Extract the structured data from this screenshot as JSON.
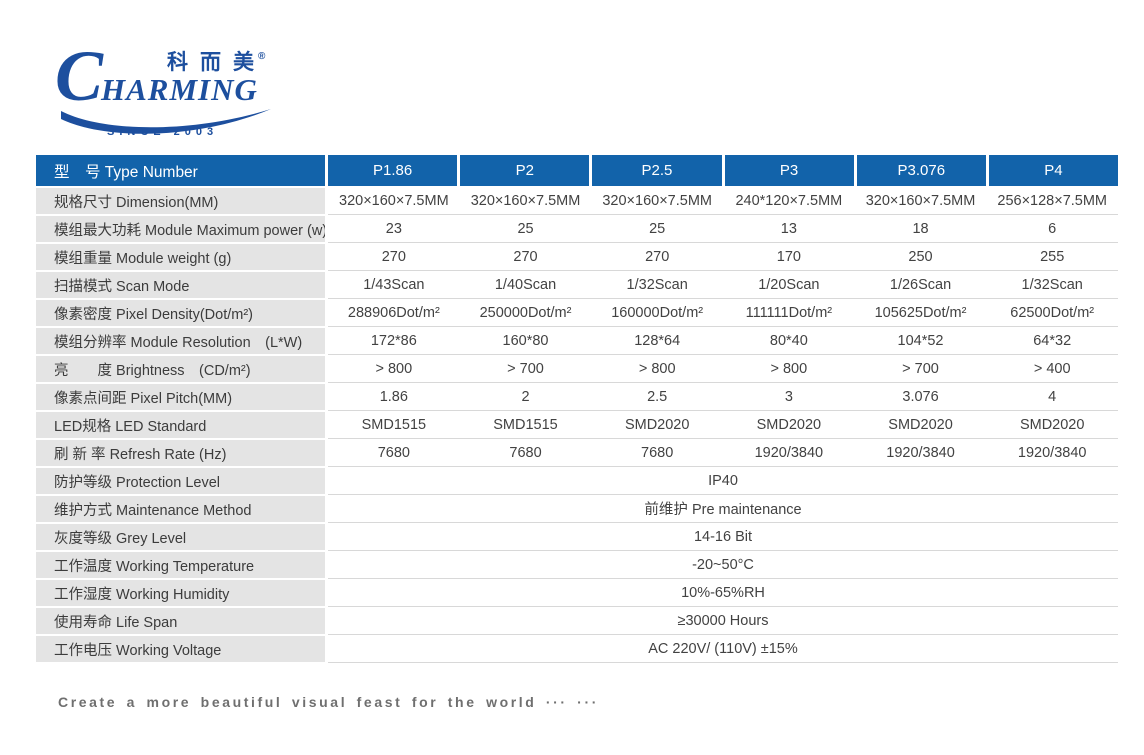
{
  "logo": {
    "chinese_name": "科而美",
    "registered_mark": "®",
    "brand_initial": "C",
    "brand_rest": "HARMING",
    "since_text": "SINCE 2003"
  },
  "colors": {
    "header_blue": "#1263aa",
    "logo_blue": "#1d4f9e",
    "label_cell_bg": "#e4e4e4",
    "row_line": "#d8d8d8",
    "label_text": "#3c3c3c",
    "value_text": "#424242",
    "footer_text": "#6f6f6f"
  },
  "table": {
    "header_label": "型　号 Type Number",
    "columns": [
      "P1.86",
      "P2",
      "P2.5",
      "P3",
      "P3.076",
      "P4"
    ],
    "rows": [
      {
        "label": "规格尺寸 Dimension(MM)",
        "values": [
          "320×160×7.5MM",
          "320×160×7.5MM",
          "320×160×7.5MM",
          "240*120×7.5MM",
          "320×160×7.5MM",
          "256×128×7.5MM"
        ]
      },
      {
        "label": "模组最大功耗 Module Maximum power (w)",
        "values": [
          "23",
          "25",
          "25",
          "13",
          "18",
          "6"
        ]
      },
      {
        "label": "模组重量 Module weight (g)",
        "values": [
          "270",
          "270",
          "270",
          "170",
          "250",
          "255"
        ]
      },
      {
        "label": "扫描模式 Scan Mode",
        "values": [
          "1/43Scan",
          "1/40Scan",
          "1/32Scan",
          "1/20Scan",
          "1/26Scan",
          "1/32Scan"
        ]
      },
      {
        "label": "像素密度 Pixel Density(Dot/m²)",
        "values": [
          "288906Dot/m²",
          "250000Dot/m²",
          "160000Dot/m²",
          "111111Dot/m²",
          "105625Dot/m²",
          "62500Dot/m²"
        ]
      },
      {
        "label": "模组分辨率 Module Resolution　(L*W)",
        "values": [
          "172*86",
          "160*80",
          "128*64",
          "80*40",
          "104*52",
          "64*32"
        ]
      },
      {
        "label": "亮　　度 Brightness　(CD/m²)",
        "values": [
          "> 800",
          "> 700",
          "> 800",
          "> 800",
          "> 700",
          "> 400"
        ]
      },
      {
        "label": "像素点间距 Pixel Pitch(MM)",
        "values": [
          "1.86",
          "2",
          "2.5",
          "3",
          "3.076",
          "4"
        ]
      },
      {
        "label": "LED规格 LED Standard",
        "values": [
          "SMD1515",
          "SMD1515",
          "SMD2020",
          "SMD2020",
          "SMD2020",
          "SMD2020"
        ]
      },
      {
        "label": "刷 新 率 Refresh Rate (Hz)",
        "values": [
          "7680",
          "7680",
          "7680",
          "1920/3840",
          "1920/3840",
          "1920/3840"
        ]
      },
      {
        "label": "防护等级 Protection Level",
        "merged_value": "IP40"
      },
      {
        "label": "维护方式 Maintenance Method",
        "merged_value": "前维护 Pre maintenance"
      },
      {
        "label": "灰度等级 Grey Level",
        "merged_value": "14-16 Bit"
      },
      {
        "label": "工作温度 Working Temperature",
        "merged_value": "-20~50°C"
      },
      {
        "label": "工作湿度 Working Humidity",
        "merged_value": "10%-65%RH"
      },
      {
        "label": "使用寿命 Life Span",
        "merged_value": "≥30000 Hours"
      },
      {
        "label": "工作电压 Working Voltage",
        "merged_value": "AC 220V/ (110V) ±15%"
      }
    ]
  },
  "footer": {
    "slogan": "Create a more beautiful visual feast for the world ··· ···"
  }
}
